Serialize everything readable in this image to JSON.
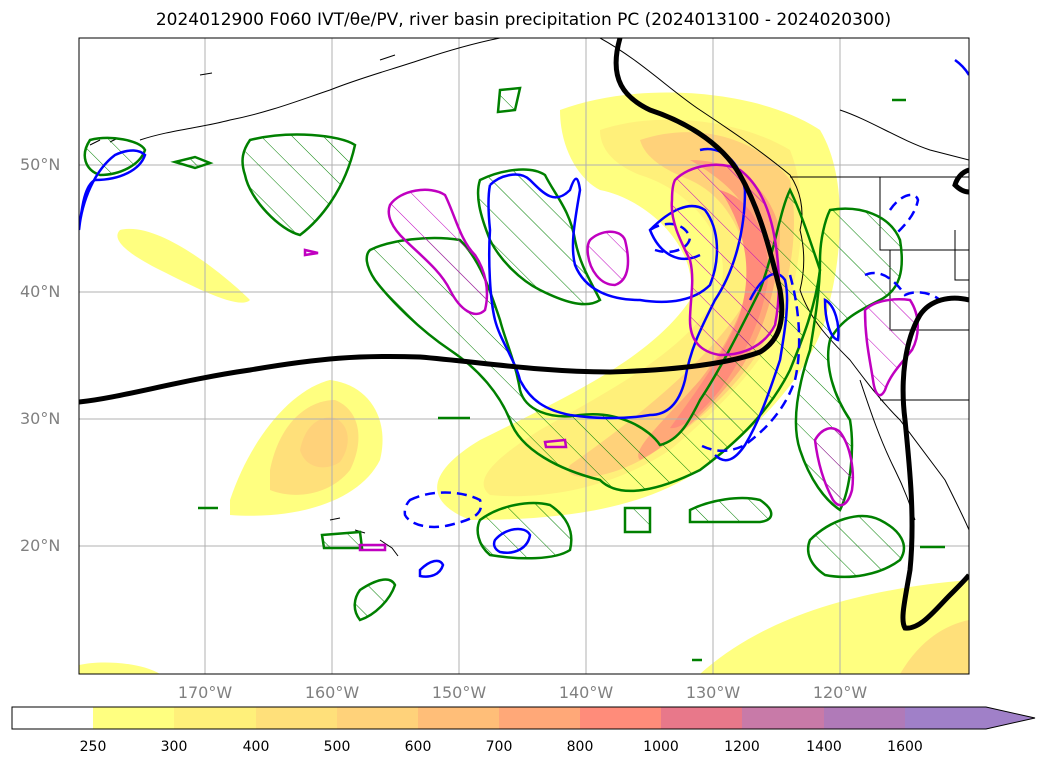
{
  "title": "2024012900 F060 IVT/θe/PV, river basin precipitation PC (2024013100 - 2024020300)",
  "map": {
    "lat_labels": [
      "50°N",
      "40°N",
      "30°N",
      "20°N"
    ],
    "lon_labels": [
      "170°W",
      "160°W",
      "150°W",
      "140°W",
      "130°W",
      "120°W"
    ],
    "gridlines": true,
    "legend": "bottom colorbar"
  },
  "colorbar": {
    "levels": [
      "250",
      "300",
      "400",
      "500",
      "600",
      "700",
      "800",
      "1000",
      "1200",
      "1400",
      "1600"
    ],
    "colors": [
      "#ffffff",
      "#ffff80",
      "#fff07a",
      "#ffe07a",
      "#ffd27a",
      "#ffbe78",
      "#ffa878",
      "#ff8c7a",
      "#e8788a",
      "#c87aa8",
      "#b07ab8",
      "#a080c8"
    ],
    "extend": "max"
  },
  "colors": {
    "ivt_contour": "#008000",
    "theta_e_contour": "#0000ff",
    "pv_contour": "#c000c0",
    "front_line": "#000000",
    "coastline": "#000000",
    "grid": "#b0b0b0",
    "axis_labels": "#808080"
  }
}
